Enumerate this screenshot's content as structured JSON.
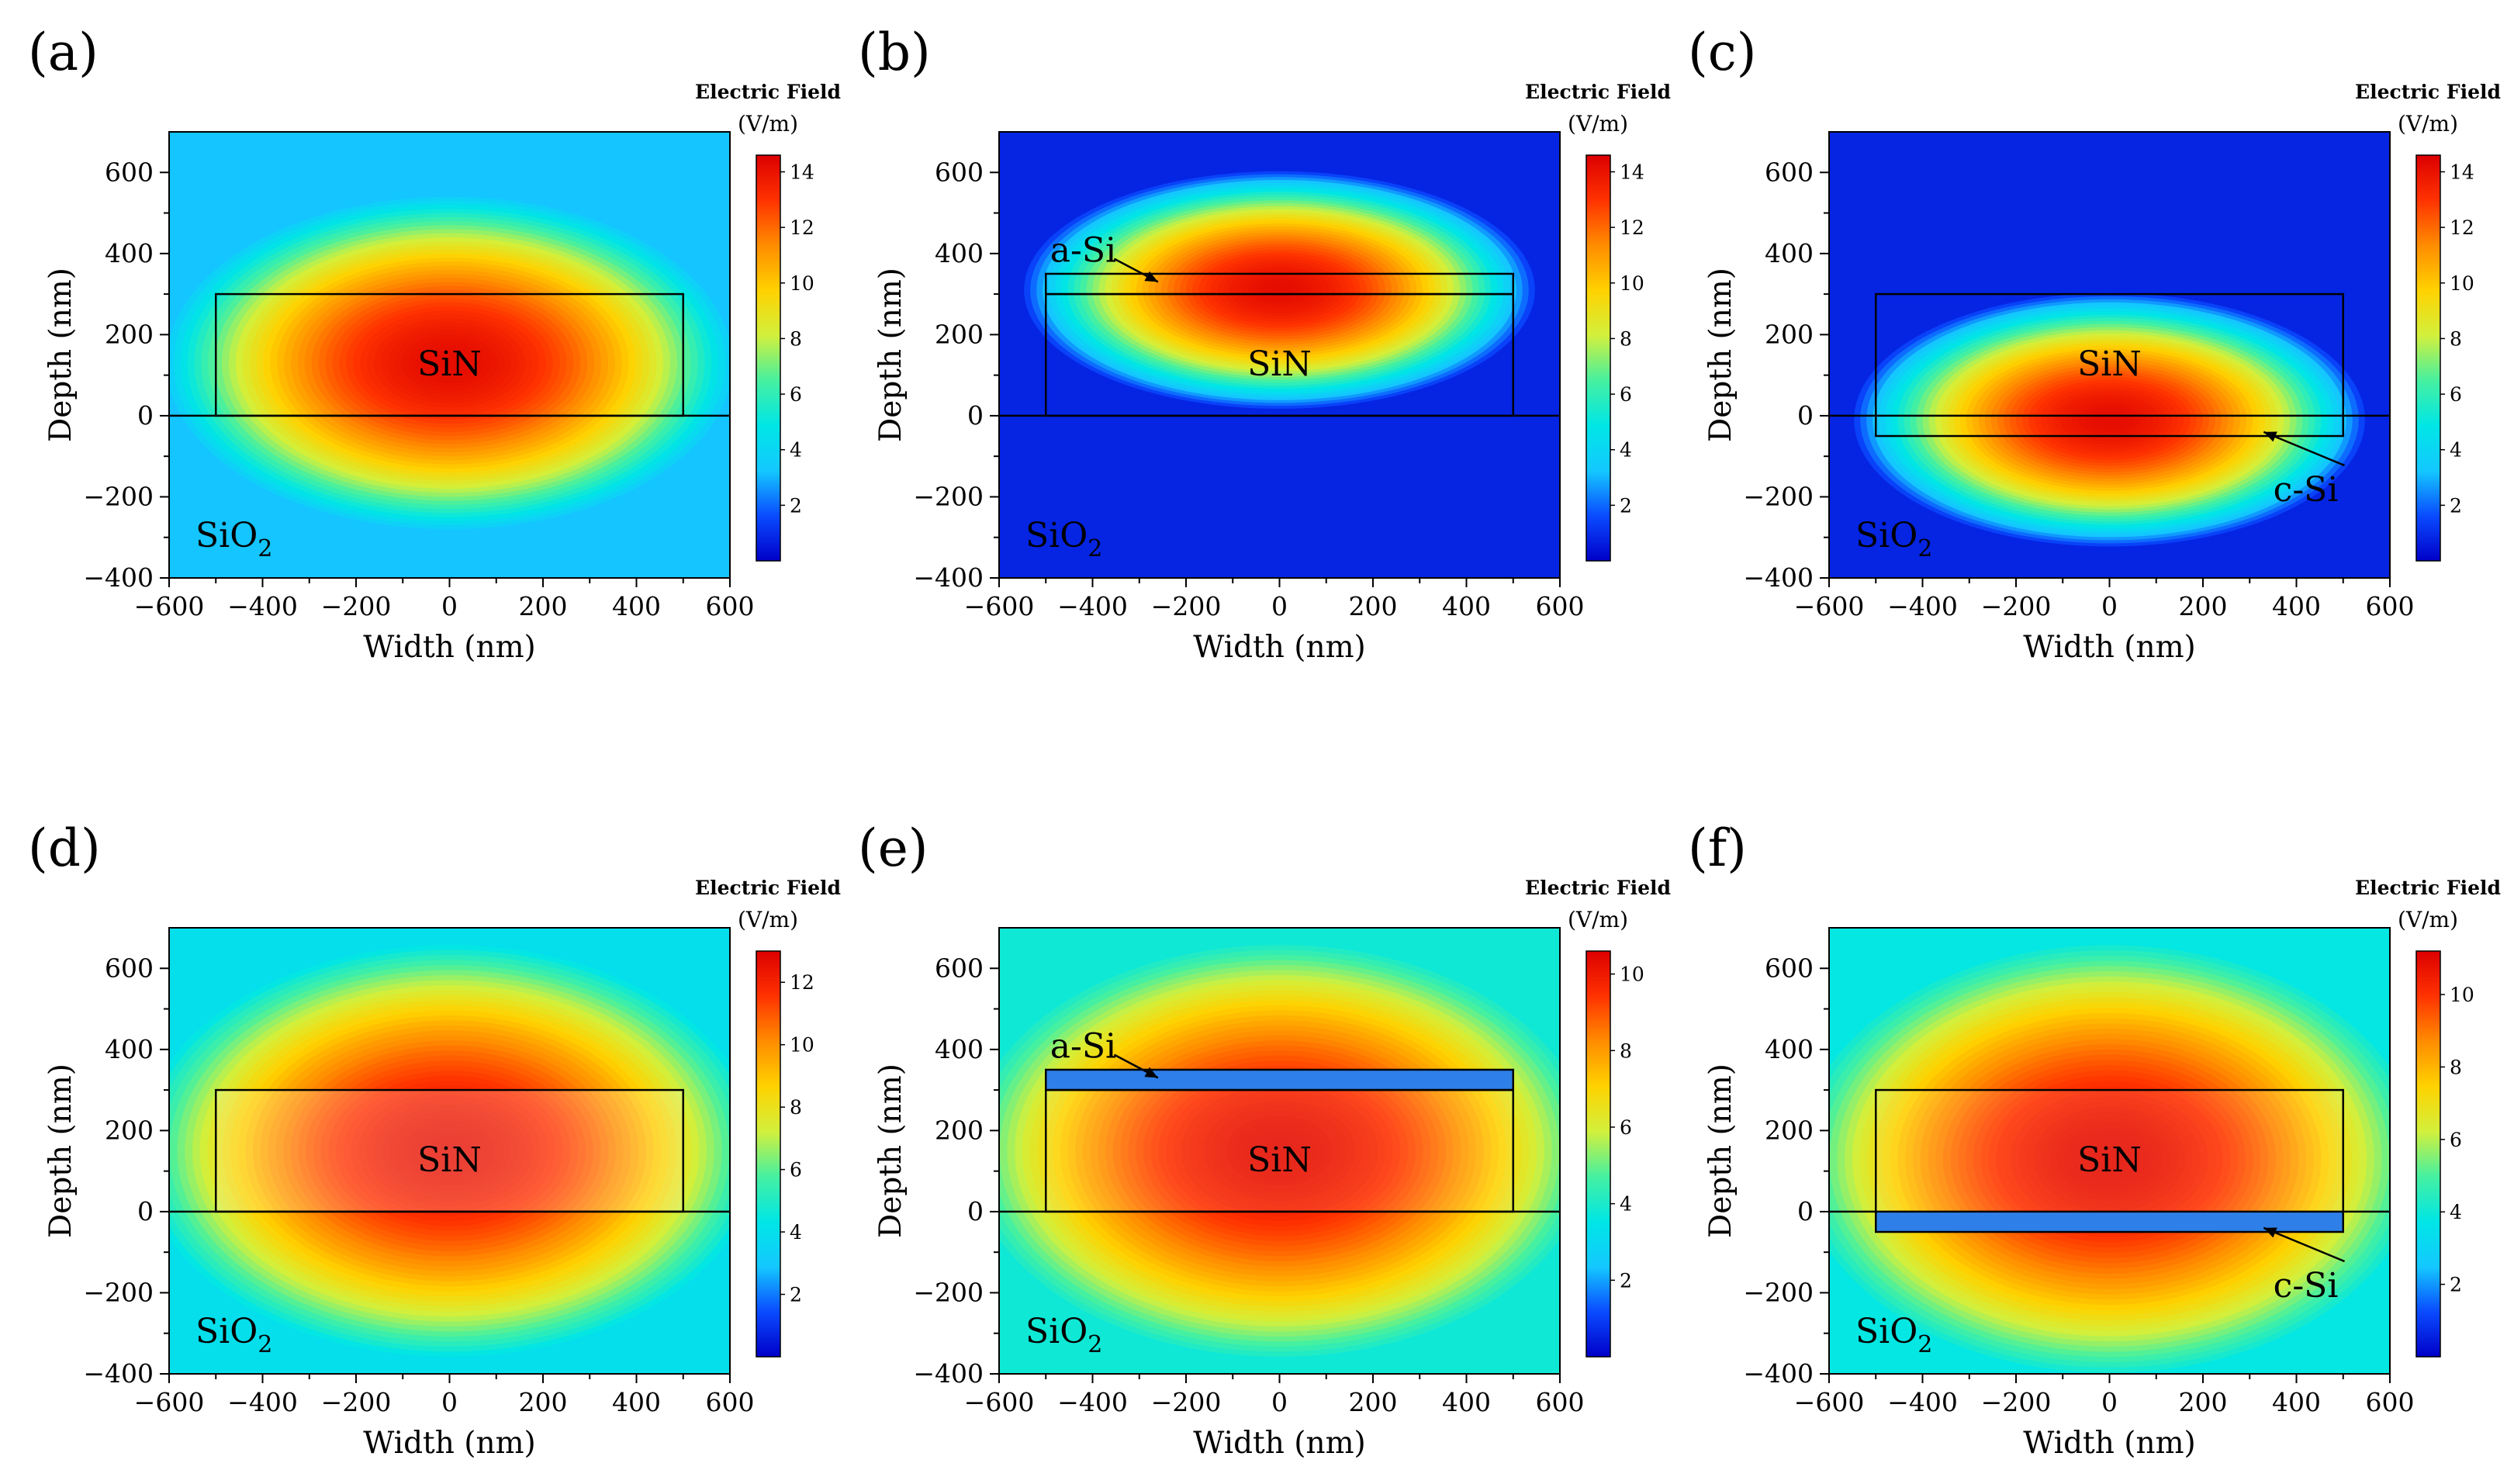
{
  "colormap": [
    "#0000c8",
    "#0a4bff",
    "#14c8ff",
    "#00e6e6",
    "#46f0a0",
    "#d2f03c",
    "#ffd200",
    "#ff8c00",
    "#ff3200",
    "#dc0000"
  ],
  "chart_data": [
    {
      "type": "heatmap",
      "panel_label": "(a)",
      "xlabel": "Width (nm)",
      "ylabel": "Depth (nm)",
      "xlim": [
        -600,
        600
      ],
      "ylim": [
        -400,
        700
      ],
      "xticks": [
        -600,
        -400,
        -200,
        0,
        200,
        400,
        600
      ],
      "yticks": [
        -400,
        -200,
        0,
        200,
        400,
        600
      ],
      "colorbar": {
        "title": "Electric Field",
        "unit": "(V/m)",
        "min": 0,
        "max": 14.6,
        "ticks": [
          2,
          4,
          6,
          8,
          10,
          12,
          14
        ]
      },
      "field": {
        "cx": 0,
        "cy": 130,
        "rx": 620,
        "ry": 420,
        "peak": 14.2,
        "floor": 3.2,
        "band": null
      },
      "outlines": [
        {
          "x0": -500,
          "x1": 500,
          "y0": 0,
          "y1": 300
        }
      ],
      "layer": null,
      "substrate_line": 0,
      "core_label": "SiN",
      "core_label_pos": [
        0,
        130
      ],
      "cladding_label": "SiO",
      "cladding_sub": "2",
      "callout": null
    },
    {
      "type": "heatmap",
      "panel_label": "(b)",
      "xlabel": "Width (nm)",
      "ylabel": "Depth (nm)",
      "xlim": [
        -600,
        600
      ],
      "ylim": [
        -400,
        700
      ],
      "xticks": [
        -600,
        -400,
        -200,
        0,
        200,
        400,
        600
      ],
      "yticks": [
        -400,
        -200,
        0,
        200,
        400,
        600
      ],
      "colorbar": {
        "title": "Electric Field",
        "unit": "(V/m)",
        "min": 0,
        "max": 14.6,
        "ticks": [
          2,
          4,
          6,
          8,
          10,
          12,
          14
        ]
      },
      "field": {
        "cx": 0,
        "cy": 310,
        "rx": 560,
        "ry": 300,
        "peak": 14.2,
        "floor": 0.8,
        "band": null
      },
      "outlines": [
        {
          "x0": -500,
          "x1": 500,
          "y0": 0,
          "y1": 300
        },
        {
          "x0": -500,
          "x1": 500,
          "y0": 300,
          "y1": 350
        }
      ],
      "layer": null,
      "substrate_line": 0,
      "core_label": "SiN",
      "core_label_pos": [
        0,
        130
      ],
      "cladding_label": "SiO",
      "cladding_sub": "2",
      "callout": {
        "text": "a-Si",
        "text_pos": [
          -420,
          410
        ],
        "tip": [
          -260,
          330
        ]
      }
    },
    {
      "type": "heatmap",
      "panel_label": "(c)",
      "xlabel": "Width (nm)",
      "ylabel": "Depth (nm)",
      "xlim": [
        -600,
        600
      ],
      "ylim": [
        -400,
        700
      ],
      "xticks": [
        -600,
        -400,
        -200,
        0,
        200,
        400,
        600
      ],
      "yticks": [
        -400,
        -200,
        0,
        200,
        400,
        600
      ],
      "colorbar": {
        "title": "Electric Field",
        "unit": "(V/m)",
        "min": 0,
        "max": 14.6,
        "ticks": [
          2,
          4,
          6,
          8,
          10,
          12,
          14
        ]
      },
      "field": {
        "cx": 0,
        "cy": -10,
        "rx": 560,
        "ry": 320,
        "peak": 14.2,
        "floor": 0.8,
        "band": null
      },
      "outlines": [
        {
          "x0": -500,
          "x1": 500,
          "y0": -50,
          "y1": 300
        }
      ],
      "layer": null,
      "substrate_line": 0,
      "core_label": "SiN",
      "core_label_pos": [
        0,
        130
      ],
      "cladding_label": "SiO",
      "cladding_sub": "2",
      "callout": {
        "text": "c-Si",
        "text_pos": [
          420,
          -180
        ],
        "tip": [
          330,
          -40
        ]
      }
    },
    {
      "type": "heatmap",
      "panel_label": "(d)",
      "xlabel": "Width (nm)",
      "ylabel": "Depth (nm)",
      "xlim": [
        -600,
        600
      ],
      "ylim": [
        -400,
        700
      ],
      "xticks": [
        -600,
        -400,
        -200,
        0,
        200,
        400,
        600
      ],
      "yticks": [
        -400,
        -200,
        0,
        200,
        400,
        600
      ],
      "colorbar": {
        "title": "Electric Field",
        "unit": "(V/m)",
        "min": 0,
        "max": 13.0,
        "ticks": [
          2,
          4,
          6,
          8,
          10,
          12
        ]
      },
      "field": {
        "cx": 0,
        "cy": 150,
        "rx": 680,
        "ry": 520,
        "peak": 12.6,
        "floor": 4.0,
        "band": {
          "y0": 0,
          "y1": 300,
          "factor": 0.62
        }
      },
      "outlines": [
        {
          "x0": -500,
          "x1": 500,
          "y0": 0,
          "y1": 300
        }
      ],
      "layer": null,
      "substrate_line": 0,
      "core_label": "SiN",
      "core_label_pos": [
        0,
        130
      ],
      "cladding_label": "SiO",
      "cladding_sub": "2",
      "callout": null
    },
    {
      "type": "heatmap",
      "panel_label": "(e)",
      "xlabel": "Width (nm)",
      "ylabel": "Depth (nm)",
      "xlim": [
        -600,
        600
      ],
      "ylim": [
        -400,
        700
      ],
      "xticks": [
        -600,
        -400,
        -200,
        0,
        200,
        400,
        600
      ],
      "yticks": [
        -400,
        -200,
        0,
        200,
        400,
        600
      ],
      "colorbar": {
        "title": "Electric Field",
        "unit": "(V/m)",
        "min": 0,
        "max": 10.6,
        "ticks": [
          2,
          4,
          6,
          8,
          10
        ]
      },
      "field": {
        "cx": 0,
        "cy": 150,
        "rx": 680,
        "ry": 520,
        "peak": 10.3,
        "floor": 3.8,
        "band": {
          "y0": 0,
          "y1": 300,
          "factor": 0.8
        }
      },
      "outlines": [
        {
          "x0": -500,
          "x1": 500,
          "y0": 0,
          "y1": 300
        },
        {
          "x0": -500,
          "x1": 500,
          "y0": 300,
          "y1": 350
        }
      ],
      "layer": {
        "x0": -500,
        "x1": 500,
        "y0": 300,
        "y1": 350,
        "color": "#2f7fe8"
      },
      "substrate_line": 0,
      "core_label": "SiN",
      "core_label_pos": [
        0,
        130
      ],
      "cladding_label": "SiO",
      "cladding_sub": "2",
      "callout": {
        "text": "a-Si",
        "text_pos": [
          -420,
          410
        ],
        "tip": [
          -260,
          330
        ]
      }
    },
    {
      "type": "heatmap",
      "panel_label": "(f)",
      "xlabel": "Width (nm)",
      "ylabel": "Depth (nm)",
      "xlim": [
        -600,
        600
      ],
      "ylim": [
        -400,
        700
      ],
      "xticks": [
        -600,
        -400,
        -200,
        0,
        200,
        400,
        600
      ],
      "yticks": [
        -400,
        -200,
        0,
        200,
        400,
        600
      ],
      "colorbar": {
        "title": "Electric Field",
        "unit": "(V/m)",
        "min": 0,
        "max": 11.2,
        "ticks": [
          2,
          4,
          6,
          8,
          10
        ]
      },
      "field": {
        "cx": 0,
        "cy": 130,
        "rx": 680,
        "ry": 540,
        "peak": 10.9,
        "floor": 3.8,
        "band": {
          "y0": -50,
          "y1": 300,
          "factor": 0.8
        }
      },
      "outlines": [
        {
          "x0": -500,
          "x1": 500,
          "y0": -50,
          "y1": 300
        }
      ],
      "layer": {
        "x0": -500,
        "x1": 500,
        "y0": -50,
        "y1": 0,
        "color": "#2f7fe8"
      },
      "substrate_line": 0,
      "core_label": "SiN",
      "core_label_pos": [
        0,
        130
      ],
      "cladding_label": "SiO",
      "cladding_sub": "2",
      "callout": {
        "text": "c-Si",
        "text_pos": [
          420,
          -180
        ],
        "tip": [
          330,
          -40
        ]
      }
    }
  ]
}
